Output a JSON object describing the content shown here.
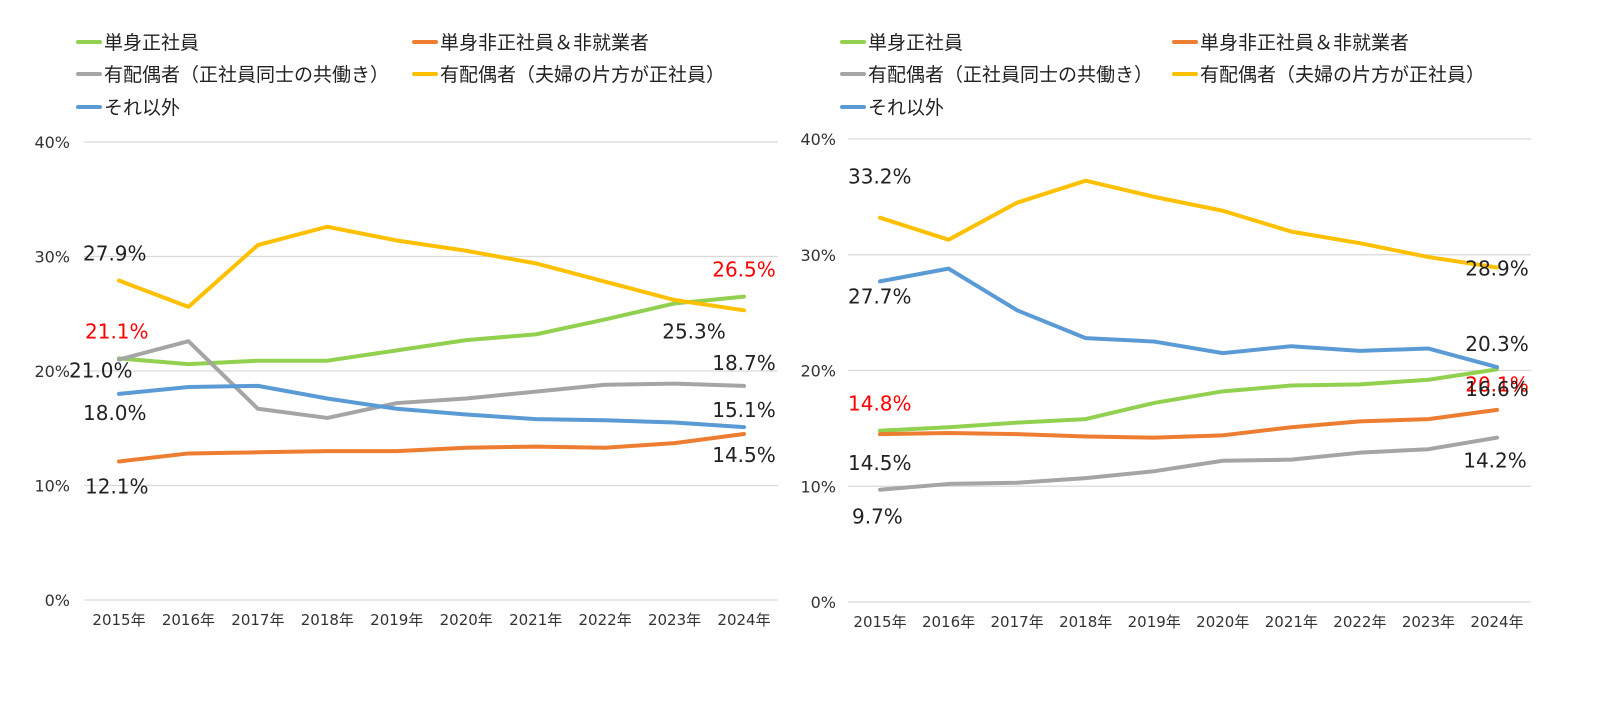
{
  "chart_data": [
    {
      "type": "line",
      "title": "",
      "xlabel": "",
      "ylabel": "",
      "ylim": [
        0,
        40
      ],
      "yticks": [
        "0%",
        "10%",
        "20%",
        "30%",
        "40%"
      ],
      "grid": true,
      "legend_position": "top",
      "categories": [
        "2015年",
        "2016年",
        "2017年",
        "2018年",
        "2019年",
        "2020年",
        "2021年",
        "2022年",
        "2023年",
        "2024年"
      ],
      "series": [
        {
          "name": "単身正社員",
          "color": "#92d050",
          "values": [
            21.1,
            20.6,
            20.9,
            20.9,
            21.8,
            22.7,
            23.2,
            24.5,
            25.9,
            26.5
          ]
        },
        {
          "name": "単身非正社員＆非就業者",
          "color": "#ed7d31",
          "values": [
            12.1,
            12.8,
            12.9,
            13.0,
            13.0,
            13.3,
            13.4,
            13.3,
            13.7,
            14.5
          ]
        },
        {
          "name": "有配偶者（正社員同士の共働き）",
          "color": "#a5a5a5",
          "values": [
            21.0,
            22.6,
            16.7,
            15.9,
            17.2,
            17.6,
            18.2,
            18.8,
            18.9,
            18.7
          ]
        },
        {
          "name": "有配偶者（夫婦の片方が正社員）",
          "color": "#ffc000",
          "values": [
            27.9,
            25.6,
            31.0,
            32.6,
            31.4,
            30.5,
            29.4,
            27.8,
            26.2,
            25.3
          ]
        },
        {
          "name": "それ以外",
          "color": "#5b9bd5",
          "values": [
            18.0,
            18.6,
            18.7,
            17.6,
            16.7,
            16.2,
            15.8,
            15.7,
            15.5,
            15.1
          ]
        }
      ],
      "annotations": [
        {
          "text": "27.9%",
          "series": 3,
          "point": 0,
          "color": "#222222"
        },
        {
          "text": "21.1%",
          "series": 0,
          "point": 0,
          "color": "#ff0000"
        },
        {
          "text": "21.0%",
          "series": 2,
          "point": 0,
          "color": "#222222"
        },
        {
          "text": "18.0%",
          "series": 4,
          "point": 0,
          "color": "#222222"
        },
        {
          "text": "12.1%",
          "series": 1,
          "point": 0,
          "color": "#222222"
        },
        {
          "text": "26.5%",
          "series": 0,
          "point": 9,
          "color": "#ff0000"
        },
        {
          "text": "25.3%",
          "series": 3,
          "point": 9,
          "color": "#222222"
        },
        {
          "text": "18.7%",
          "series": 2,
          "point": 9,
          "color": "#222222"
        },
        {
          "text": "15.1%",
          "series": 4,
          "point": 9,
          "color": "#222222"
        },
        {
          "text": "14.5%",
          "series": 1,
          "point": 9,
          "color": "#222222"
        }
      ]
    },
    {
      "type": "line",
      "title": "",
      "xlabel": "",
      "ylabel": "",
      "ylim": [
        0,
        40
      ],
      "yticks": [
        "0%",
        "10%",
        "20%",
        "30%",
        "40%"
      ],
      "grid": true,
      "legend_position": "top",
      "categories": [
        "2015年",
        "2016年",
        "2017年",
        "2018年",
        "2019年",
        "2020年",
        "2021年",
        "2022年",
        "2023年",
        "2024年"
      ],
      "series": [
        {
          "name": "単身正社員",
          "color": "#92d050",
          "values": [
            14.8,
            15.1,
            15.5,
            15.8,
            17.2,
            18.2,
            18.7,
            18.8,
            19.2,
            20.1
          ]
        },
        {
          "name": "単身非正社員＆非就業者",
          "color": "#ed7d31",
          "values": [
            14.5,
            14.6,
            14.5,
            14.3,
            14.2,
            14.4,
            15.1,
            15.6,
            15.8,
            16.6
          ]
        },
        {
          "name": "有配偶者（正社員同士の共働き）",
          "color": "#a5a5a5",
          "values": [
            9.7,
            10.2,
            10.3,
            10.7,
            11.3,
            12.2,
            12.3,
            12.9,
            13.2,
            14.2
          ]
        },
        {
          "name": "有配偶者（夫婦の片方が正社員）",
          "color": "#ffc000",
          "values": [
            33.2,
            31.3,
            34.5,
            36.4,
            35.0,
            33.8,
            32.0,
            31.0,
            29.8,
            28.9
          ]
        },
        {
          "name": "それ以外",
          "color": "#5b9bd5",
          "values": [
            27.7,
            28.8,
            25.2,
            22.8,
            22.5,
            21.5,
            22.1,
            21.7,
            21.9,
            20.3
          ]
        }
      ],
      "annotations": [
        {
          "text": "33.2%",
          "series": 3,
          "point": 0,
          "color": "#222222"
        },
        {
          "text": "27.7%",
          "series": 4,
          "point": 0,
          "color": "#222222"
        },
        {
          "text": "14.8%",
          "series": 0,
          "point": 0,
          "color": "#ff0000"
        },
        {
          "text": "14.5%",
          "series": 1,
          "point": 0,
          "color": "#222222"
        },
        {
          "text": "9.7%",
          "series": 2,
          "point": 0,
          "color": "#222222"
        },
        {
          "text": "28.9%",
          "series": 3,
          "point": 9,
          "color": "#222222"
        },
        {
          "text": "20.3%",
          "series": 4,
          "point": 9,
          "color": "#222222"
        },
        {
          "text": "20.1%",
          "series": 0,
          "point": 9,
          "color": "#ff0000"
        },
        {
          "text": "16.6%",
          "series": 1,
          "point": 9,
          "color": "#222222"
        },
        {
          "text": "14.2%",
          "series": 2,
          "point": 9,
          "color": "#222222"
        }
      ]
    }
  ]
}
